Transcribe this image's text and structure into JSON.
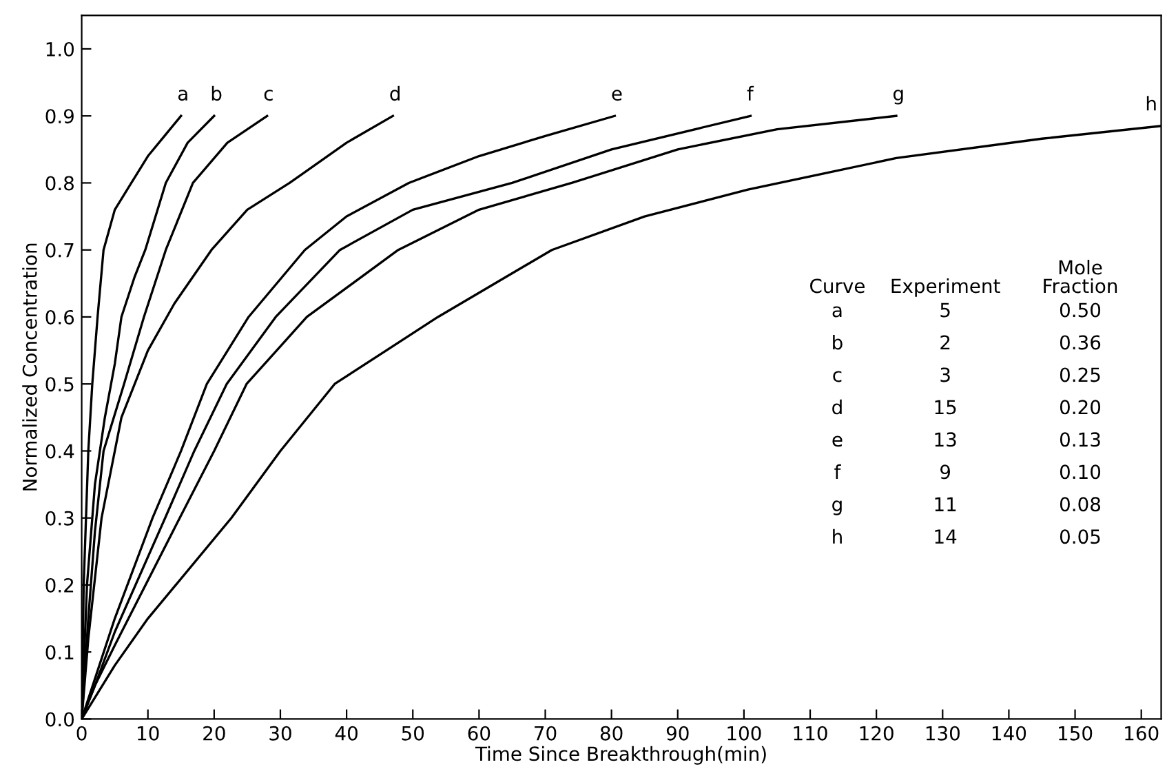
{
  "chart_data": {
    "type": "line",
    "xlabel": "Time Since Breakthrough(min)",
    "ylabel": "Normalized Concentration",
    "xlim": [
      0,
      163
    ],
    "ylim": [
      0,
      1.05
    ],
    "xticks": [
      0,
      10,
      20,
      30,
      40,
      50,
      60,
      70,
      80,
      90,
      100,
      110,
      120,
      130,
      140,
      150,
      160
    ],
    "yticks": [
      {
        "value": 0,
        "label": "0.0"
      },
      0.1,
      0.2,
      0.3,
      0.4,
      0.5,
      0.6,
      0.7,
      0.8,
      0.9,
      {
        "value": 1,
        "label": "1.0"
      }
    ],
    "grid": false,
    "legend": false,
    "marker": "none",
    "line_style": "solid",
    "series": [
      {
        "name": "a",
        "color": "#000000",
        "x": [
          0,
          0.3,
          1,
          1.6,
          2.4,
          3.3,
          5,
          7.5,
          10,
          12.5,
          15
        ],
        "values": [
          0,
          0.2,
          0.4,
          0.5,
          0.6,
          0.7,
          0.76,
          0.8,
          0.84,
          0.87,
          0.9
        ]
      },
      {
        "name": "b",
        "color": "#000000",
        "x": [
          0,
          0.8,
          2,
          3.5,
          5,
          6,
          8,
          9.6,
          12.7,
          16,
          20
        ],
        "values": [
          0,
          0.2,
          0.35,
          0.45,
          0.53,
          0.6,
          0.66,
          0.7,
          0.8,
          0.86,
          0.9
        ]
      },
      {
        "name": "c",
        "color": "#000000",
        "x": [
          0,
          1,
          2,
          3.3,
          6.4,
          9.4,
          12.7,
          16.8,
          22,
          28
        ],
        "values": [
          0,
          0.15,
          0.28,
          0.4,
          0.5,
          0.6,
          0.7,
          0.8,
          0.86,
          0.9
        ]
      },
      {
        "name": "d",
        "color": "#000000",
        "x": [
          0,
          1,
          3,
          6,
          10,
          14,
          19.6,
          25,
          31.4,
          40,
          47
        ],
        "values": [
          0,
          0.12,
          0.3,
          0.45,
          0.55,
          0.62,
          0.7,
          0.76,
          0.8,
          0.86,
          0.9
        ]
      },
      {
        "name": "e",
        "color": "#000000",
        "x": [
          0,
          2,
          5,
          10.7,
          15,
          18.9,
          25.2,
          33.7,
          40,
          49.4,
          60,
          70,
          80.5
        ],
        "values": [
          0,
          0.06,
          0.15,
          0.3,
          0.4,
          0.5,
          0.6,
          0.7,
          0.75,
          0.8,
          0.84,
          0.87,
          0.9
        ]
      },
      {
        "name": "f",
        "color": "#000000",
        "x": [
          0,
          2,
          5,
          12.6,
          17,
          21.9,
          29.3,
          39,
          50,
          65,
          80,
          101
        ],
        "values": [
          0,
          0.05,
          0.13,
          0.3,
          0.4,
          0.5,
          0.6,
          0.7,
          0.76,
          0.8,
          0.85,
          0.9
        ]
      },
      {
        "name": "g",
        "color": "#000000",
        "x": [
          0,
          2,
          5,
          14.8,
          20,
          24.9,
          34,
          47.8,
          60,
          74,
          90,
          105,
          123
        ],
        "values": [
          0,
          0.05,
          0.11,
          0.3,
          0.4,
          0.5,
          0.6,
          0.7,
          0.76,
          0.8,
          0.85,
          0.88,
          0.9
        ]
      },
      {
        "name": "h",
        "color": "#000000",
        "x": [
          0,
          5,
          10,
          22.6,
          30,
          38.2,
          53.8,
          71,
          85,
          100.6,
          123,
          145,
          163
        ],
        "values": [
          0,
          0.08,
          0.15,
          0.3,
          0.4,
          0.5,
          0.6,
          0.7,
          0.75,
          0.79,
          0.837,
          0.866,
          0.885
        ]
      }
    ],
    "annotations": [
      "Curve",
      "Experiment",
      "Mole\nFraction",
      "a",
      "5",
      "0.50",
      "b",
      "2",
      "0.36",
      "c",
      "3",
      "0.25",
      "d",
      "15",
      "0.20",
      "e",
      "13",
      "0.13",
      "f",
      "9",
      "0.10",
      "g",
      "11",
      "0.08",
      "h",
      "14",
      "0.05"
    ]
  }
}
